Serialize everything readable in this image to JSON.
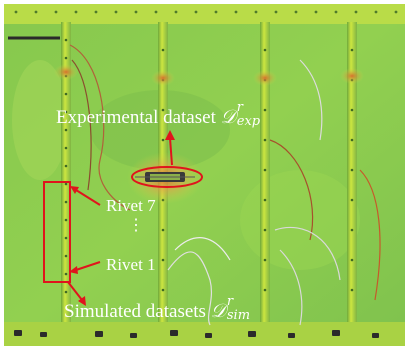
{
  "annotations": {
    "experimental_label": "Experimental dataset",
    "experimental_math_base": "𝒟",
    "experimental_math_sup": "r",
    "experimental_math_sub": "exp",
    "rivet_top_label": "Rivet 7",
    "rivet_bottom_label": "Rivet 1",
    "ellipsis": "⋮",
    "simulated_label": "Simulated datasets",
    "simulated_math_base": "𝒟",
    "simulated_math_sup": "r",
    "simulated_math_sub": "sim"
  },
  "colors": {
    "panel_green": "#8fd14f",
    "stiffener_green": "#c8e63c",
    "hotspot_orange": "#e8873a",
    "annotation_red": "#e0141c",
    "annotation_text": "#ffffff"
  }
}
